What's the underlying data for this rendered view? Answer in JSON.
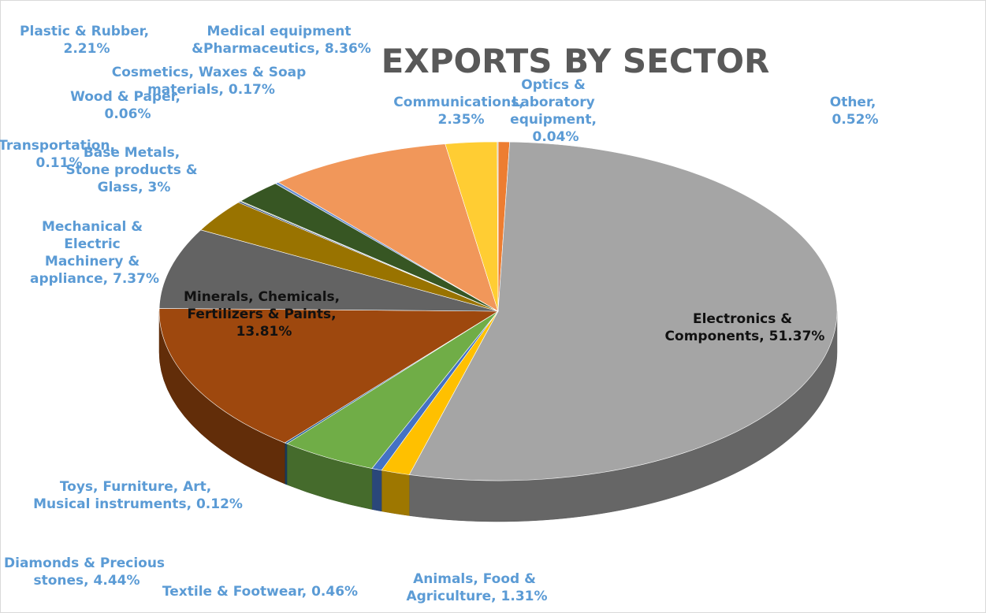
{
  "chart_data": {
    "type": "pie3d",
    "title": "EXPORTS BY SECTOR",
    "values": [
      0.52,
      51.37,
      1.31,
      0.46,
      4.44,
      0.12,
      13.81,
      7.37,
      3,
      0.11,
      0.06,
      2.21,
      0.17,
      8.36,
      2.35,
      0.04
    ],
    "value_labels": [
      "Other, 0.52%",
      "Electronics & Components, 51.37%",
      "Animals, Food & Agriculture, 1.31%",
      "Textile & Footwear, 0.46%",
      "Diamonds & Precious stones, 4.44%",
      "Toys, Furniture, Art, Musical instruments, 0.12%",
      "Minerals, Chemicals, Fertilizers & Paints, 13.81%",
      "Mechanical & Electric Machinery & appliance, 7.37%",
      "Base Metals, Stone products & Glass, 3%",
      "Transportation, 0.11%",
      "Wood & Paper, 0.06%",
      "Plastic & Rubber, 2.21%",
      "Cosmetics, Waxes & Soap materials, 0.17%",
      "Medical equipment &Pharmaceutics, 8.36%",
      "Communications, 2.35%",
      "Optics & Laboratory equipment, 0.04%"
    ],
    "colors": [
      "#ed7d31",
      "#a5a5a5",
      "#ffc000",
      "#4472c4",
      "#70ad47",
      "#255e91",
      "#9e480e",
      "#636363",
      "#997300",
      "#264478",
      "#43682b",
      "#375623",
      "#698ed0",
      "#f1975a",
      "#ffcd33",
      "#b7b7b7"
    ]
  }
}
